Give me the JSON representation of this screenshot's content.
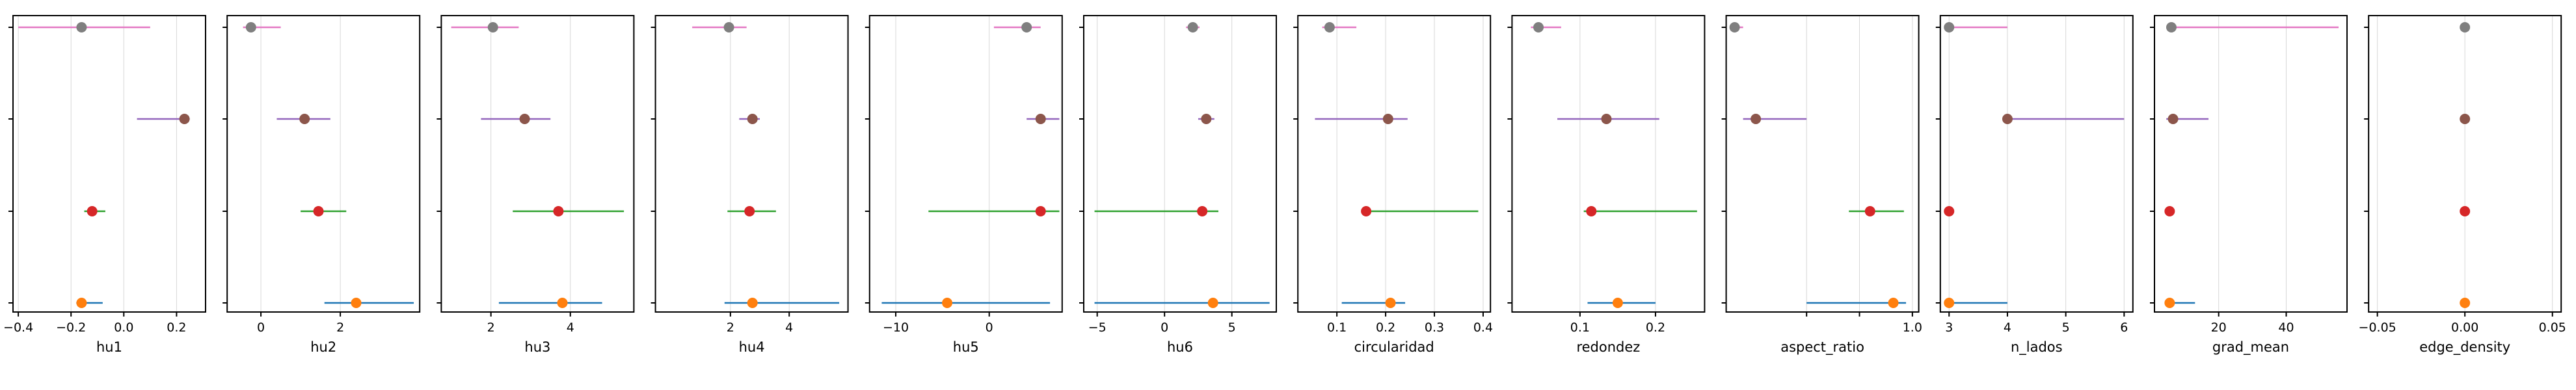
{
  "colors": {
    "cat0": "#1f77b4",
    "cat1": "#2ca02c",
    "cat2": "#9467bd",
    "cat3": "#e377c2",
    "pt0": "#ff7f0e",
    "pt1": "#d62728",
    "pt2": "#8c564b",
    "pt3": "#7f7f7f"
  },
  "chart_data": [
    {
      "type": "scatter",
      "xlabel": "hu1",
      "xlim": [
        -0.42,
        0.31
      ],
      "xticks": [
        -0.4,
        -0.2,
        0.0,
        0.2
      ],
      "tick_labels": [
        "−0.4",
        "−0.2",
        "0.0",
        "0.2"
      ],
      "rows": [
        {
          "lo": -0.18,
          "hi": -0.08,
          "pt": -0.16
        },
        {
          "lo": -0.15,
          "hi": -0.07,
          "pt": -0.12
        },
        {
          "lo": 0.05,
          "hi": 0.25,
          "pt": 0.23
        },
        {
          "lo": -0.4,
          "hi": 0.1,
          "pt": -0.16
        }
      ]
    },
    {
      "type": "scatter",
      "xlabel": "hu2",
      "xlim": [
        -0.85,
        4.0
      ],
      "xticks": [
        0,
        2
      ],
      "tick_labels": [
        "0",
        "2"
      ],
      "rows": [
        {
          "lo": 1.6,
          "hi": 3.85,
          "pt": 2.4
        },
        {
          "lo": 1.0,
          "hi": 2.15,
          "pt": 1.45
        },
        {
          "lo": 0.4,
          "hi": 1.75,
          "pt": 1.1
        },
        {
          "lo": -0.45,
          "hi": 0.5,
          "pt": -0.25
        }
      ]
    },
    {
      "type": "scatter",
      "xlabel": "hu3",
      "xlim": [
        0.75,
        5.6
      ],
      "xticks": [
        2,
        4
      ],
      "tick_labels": [
        "2",
        "4"
      ],
      "rows": [
        {
          "lo": 2.2,
          "hi": 4.8,
          "pt": 3.8
        },
        {
          "lo": 2.55,
          "hi": 5.35,
          "pt": 3.7
        },
        {
          "lo": 1.75,
          "hi": 3.5,
          "pt": 2.85
        },
        {
          "lo": 1.0,
          "hi": 2.7,
          "pt": 2.05
        }
      ]
    },
    {
      "type": "scatter",
      "xlabel": "hu4",
      "xlim": [
        -0.55,
        6.0
      ],
      "xticks": [
        2,
        4
      ],
      "tick_labels": [
        "2",
        "4"
      ],
      "rows": [
        {
          "lo": 1.8,
          "hi": 5.7,
          "pt": 2.75
        },
        {
          "lo": 1.9,
          "hi": 3.55,
          "pt": 2.65
        },
        {
          "lo": 2.3,
          "hi": 3.0,
          "pt": 2.75
        },
        {
          "lo": 0.7,
          "hi": 2.55,
          "pt": 1.95
        }
      ]
    },
    {
      "type": "scatter",
      "xlabel": "hu5",
      "xlim": [
        -12.8,
        7.8
      ],
      "xticks": [
        -10,
        0
      ],
      "tick_labels": [
        "−10",
        "0"
      ],
      "rows": [
        {
          "lo": -11.5,
          "hi": 6.5,
          "pt": -4.5
        },
        {
          "lo": -6.5,
          "hi": 7.5,
          "pt": 5.5
        },
        {
          "lo": 4.0,
          "hi": 7.5,
          "pt": 5.5
        },
        {
          "lo": 0.5,
          "hi": 5.5,
          "pt": 4.0
        }
      ]
    },
    {
      "type": "scatter",
      "xlabel": "hu6",
      "xlim": [
        -6.0,
        8.3
      ],
      "xticks": [
        -5,
        0,
        5
      ],
      "tick_labels": [
        "−5",
        "0",
        "5"
      ],
      "rows": [
        {
          "lo": -5.2,
          "hi": 7.8,
          "pt": 3.6
        },
        {
          "lo": -5.2,
          "hi": 4.0,
          "pt": 2.8
        },
        {
          "lo": 2.5,
          "hi": 3.7,
          "pt": 3.1
        },
        {
          "lo": 1.6,
          "hi": 2.6,
          "pt": 2.1
        }
      ]
    },
    {
      "type": "scatter",
      "xlabel": "circularidad",
      "xlim": [
        0.02,
        0.415
      ],
      "xticks": [
        0.1,
        0.2,
        0.3,
        0.4
      ],
      "tick_labels": [
        "0.1",
        "0.2",
        "0.3",
        "0.4"
      ],
      "rows": [
        {
          "lo": 0.11,
          "hi": 0.24,
          "pt": 0.21
        },
        {
          "lo": 0.15,
          "hi": 0.39,
          "pt": 0.16
        },
        {
          "lo": 0.055,
          "hi": 0.245,
          "pt": 0.205
        },
        {
          "lo": 0.07,
          "hi": 0.14,
          "pt": 0.085
        }
      ]
    },
    {
      "type": "scatter",
      "xlabel": "redondez",
      "xlim": [
        0.01,
        0.265
      ],
      "xticks": [
        0.1,
        0.2
      ],
      "tick_labels": [
        "0.1",
        "0.2"
      ],
      "rows": [
        {
          "lo": 0.11,
          "hi": 0.2,
          "pt": 0.15
        },
        {
          "lo": 0.105,
          "hi": 0.255,
          "pt": 0.115
        },
        {
          "lo": 0.07,
          "hi": 0.205,
          "pt": 0.135
        },
        {
          "lo": 0.035,
          "hi": 0.075,
          "pt": 0.045
        }
      ]
    },
    {
      "type": "scatter",
      "xlabel": "aspect_ratio",
      "xlim": [
        0.12,
        1.03
      ],
      "xticks": [
        0.5,
        0.75,
        1.0
      ],
      "tick_labels": [
        "",
        "",
        "1.0"
      ],
      "rows": [
        {
          "lo": 0.5,
          "hi": 0.97,
          "pt": 0.91
        },
        {
          "lo": 0.7,
          "hi": 0.96,
          "pt": 0.8
        },
        {
          "lo": 0.2,
          "hi": 0.5,
          "pt": 0.26
        },
        {
          "lo": 0.14,
          "hi": 0.2,
          "pt": 0.16
        }
      ]
    },
    {
      "type": "scatter",
      "xlabel": "n_lados",
      "xlim": [
        2.85,
        6.15
      ],
      "xticks": [
        3,
        4,
        5,
        6
      ],
      "tick_labels": [
        "3",
        "4",
        "5",
        "6"
      ],
      "rows": [
        {
          "lo": 3.0,
          "hi": 4.0,
          "pt": 3.0
        },
        {
          "lo": 3.0,
          "hi": 3.0,
          "pt": 3.0
        },
        {
          "lo": 4.0,
          "hi": 6.0,
          "pt": 4.0
        },
        {
          "lo": 3.0,
          "hi": 4.0,
          "pt": 3.0
        }
      ]
    },
    {
      "type": "scatter",
      "xlabel": "grad_mean",
      "xlim": [
        1.0,
        58.0
      ],
      "xticks": [
        20,
        40
      ],
      "tick_labels": [
        "20",
        "40"
      ],
      "rows": [
        {
          "lo": 4.5,
          "hi": 13.0,
          "pt": 5.5
        },
        {
          "lo": 4.5,
          "hi": 6.0,
          "pt": 5.5
        },
        {
          "lo": 4.5,
          "hi": 17.0,
          "pt": 6.5
        },
        {
          "lo": 4.5,
          "hi": 55.5,
          "pt": 6.0
        }
      ]
    },
    {
      "type": "scatter",
      "xlabel": "edge_density",
      "xlim": [
        -0.055,
        0.055
      ],
      "xticks": [
        -0.05,
        0.0,
        0.05
      ],
      "tick_labels": [
        "−0.05",
        "0.00",
        "0.05"
      ],
      "rows": [
        {
          "lo": 0.0,
          "hi": 0.0,
          "pt": 0.0
        },
        {
          "lo": 0.0,
          "hi": 0.0,
          "pt": 0.0
        },
        {
          "lo": 0.0,
          "hi": 0.0,
          "pt": 0.0
        },
        {
          "lo": 0.0,
          "hi": 0.0,
          "pt": 0.0
        }
      ]
    }
  ]
}
